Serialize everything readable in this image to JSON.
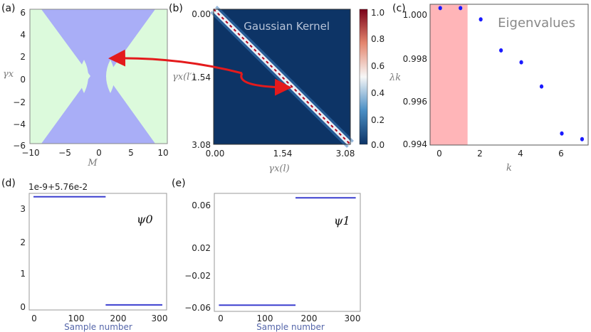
{
  "panels": {
    "a": {
      "label": "(a)",
      "xlabel": "M",
      "ylabel": "γx",
      "xticks": [
        "−10",
        "−5",
        "0",
        "5",
        "10"
      ],
      "yticks": [
        "6",
        "4",
        "2",
        "0",
        "−2",
        "−4",
        "−6"
      ],
      "colors": {
        "region": "#a9aef7",
        "background": "#dcfadc"
      }
    },
    "b": {
      "label": "(b)",
      "title": "Gaussian Kernel",
      "xticks": [
        "0.00",
        "1.54",
        "3.08"
      ],
      "yticks": [
        "0.00",
        "1.54",
        "3.08"
      ],
      "xlabel": "γx(l)",
      "ylabel": "γx(l′)",
      "colorbar_ticks": [
        "1.0",
        "0.8",
        "0.6",
        "0.4",
        "0.2",
        "0.0"
      ],
      "colors": {
        "low": "#0d3466",
        "high": "#b3001b"
      }
    },
    "c": {
      "label": "(c)",
      "title": "Eigenvalues",
      "xlabel": "k",
      "ylabel": "λk",
      "xticks": [
        "0",
        "2",
        "4",
        "6"
      ],
      "yticks": [
        "1.000",
        "0.998",
        "0.996",
        "0.994"
      ],
      "colors": {
        "highlight": "#ffb5b8",
        "points": "#1a1aff"
      }
    },
    "d": {
      "label": "(d)",
      "offset_text": "1e-9+5.76e-2",
      "annotation": "ψ0",
      "xlabel": "Sample number",
      "xticks": [
        "0",
        "100",
        "200",
        "300"
      ],
      "yticks": [
        "3",
        "2",
        "1",
        "0"
      ]
    },
    "e": {
      "label": "(e)",
      "annotation": "ψ1",
      "xlabel": "Sample number",
      "xticks": [
        "0",
        "100",
        "200",
        "300"
      ],
      "yticks": [
        "0.06",
        "0.02",
        "−0.02",
        "−0.06"
      ]
    }
  },
  "chart_data": [
    {
      "type": "area",
      "panel": "a",
      "xlim": [
        -10,
        10
      ],
      "ylim": [
        -6,
        6
      ]
    },
    {
      "type": "heatmap",
      "panel": "b",
      "xlim": [
        0,
        3.08
      ],
      "ylim": [
        0,
        3.08
      ],
      "clim": [
        0,
        1
      ]
    },
    {
      "type": "scatter",
      "panel": "c",
      "x": [
        0,
        1,
        2,
        3,
        4,
        5,
        6,
        7
      ],
      "values": [
        1.0,
        1.0,
        0.9995,
        0.99813,
        0.9976,
        0.99653,
        0.99445,
        0.9942
      ],
      "xlim": [
        -0.5,
        7.3
      ],
      "ylim": [
        0.99394,
        1.00017
      ],
      "highlight_x": [
        -0.5,
        1.35
      ]
    },
    {
      "type": "line",
      "panel": "d",
      "series": [
        {
          "x": [
            0,
            168
          ],
          "values": [
            3.3,
            3.3
          ]
        },
        {
          "x": [
            168,
            300
          ],
          "values": [
            0.1,
            0.1
          ]
        }
      ],
      "xlim": [
        -10,
        310
      ],
      "ylim": [
        -0.05,
        3.4
      ]
    },
    {
      "type": "line",
      "panel": "e",
      "series": [
        {
          "x": [
            0,
            168
          ],
          "values": [
            -0.057,
            -0.057
          ]
        },
        {
          "x": [
            168,
            300
          ],
          "values": [
            0.063,
            0.063
          ]
        }
      ],
      "xlim": [
        -10,
        310
      ],
      "ylim": [
        -0.064,
        0.068
      ]
    }
  ]
}
